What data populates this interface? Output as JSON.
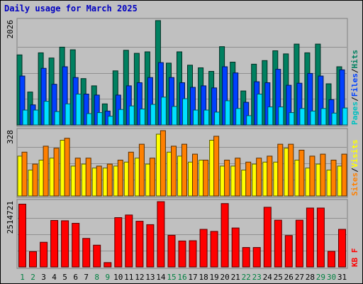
{
  "chart_data": {
    "type": "bar",
    "title": "Daily usage for March 2025",
    "categories": [
      "1",
      "2",
      "3",
      "4",
      "5",
      "6",
      "7",
      "8",
      "9",
      "10",
      "11",
      "12",
      "13",
      "14",
      "15",
      "16",
      "17",
      "18",
      "19",
      "20",
      "21",
      "22",
      "23",
      "24",
      "25",
      "26",
      "27",
      "28",
      "29",
      "30",
      "31"
    ],
    "weekend_days": [
      1,
      2,
      8,
      9,
      15,
      16,
      22,
      23,
      29,
      30
    ],
    "panels": [
      {
        "id": "hits",
        "ymax_label": "2026",
        "ymax": 2026,
        "legend": [
          {
            "text": "Pages",
            "color": "#00c0c0"
          },
          {
            "text": "/",
            "color": "#000000"
          },
          {
            "text": "Files",
            "color": "#0040ff"
          },
          {
            "text": "/",
            "color": "#000000"
          },
          {
            "text": "Hits",
            "color": "#008060"
          }
        ],
        "series": [
          {
            "name": "Hits",
            "color": "#008060",
            "values": [
              1360,
              640,
              1400,
              1300,
              1510,
              1460,
              900,
              760,
              410,
              1050,
              1450,
              1390,
              1420,
              2026,
              1200,
              1420,
              1160,
              1110,
              1040,
              1520,
              1220,
              660,
              1180,
              1250,
              1440,
              1380,
              1570,
              1400,
              1570,
              800,
              1130
            ]
          },
          {
            "name": "Files",
            "color": "#0040ff",
            "values": [
              950,
              390,
              1100,
              790,
              1130,
              920,
              600,
              580,
              270,
              580,
              760,
              820,
              920,
              1210,
              920,
              820,
              730,
              760,
              720,
              1130,
              1010,
              440,
              840,
              820,
              1080,
              770,
              810,
              1000,
              950,
              490,
              1070
            ]
          },
          {
            "name": "Pages",
            "color": "#00e0ff",
            "values": [
              290,
              290,
              460,
              260,
              410,
              600,
              220,
              240,
              170,
              300,
              370,
              310,
              400,
              540,
              360,
              510,
              290,
              290,
              250,
              470,
              320,
              180,
              600,
              350,
              350,
              240,
              320,
              270,
              320,
              230,
              330
            ]
          }
        ]
      },
      {
        "id": "visits",
        "ymax_label": "328",
        "ymax": 328,
        "legend": [
          {
            "text": "Sites",
            "color": "#ff8000"
          },
          {
            "text": "/",
            "color": "#000000"
          },
          {
            "text": "Visits",
            "color": "#ffff00"
          }
        ],
        "series": [
          {
            "name": "Visits",
            "color": "#ffff00",
            "values": [
              200,
              130,
              180,
              190,
              280,
              150,
              160,
              140,
              140,
              150,
              170,
              190,
              160,
              310,
              220,
              200,
              170,
              180,
              280,
              150,
              150,
              130,
              160,
              170,
              170,
              240,
              180,
              140,
              160,
              130,
              150
            ]
          },
          {
            "name": "Sites",
            "color": "#ff8000",
            "values": [
              220,
              160,
              250,
              240,
              290,
              190,
              190,
              150,
              160,
              180,
              220,
              260,
              190,
              328,
              250,
              260,
              210,
              180,
              300,
              180,
              190,
              170,
              190,
              200,
              260,
              260,
              230,
              200,
              210,
              180,
              210
            ]
          }
        ]
      },
      {
        "id": "kbytes",
        "ymax_label": "2514721",
        "ymax": 2514721,
        "legend": [
          {
            "text": "KB F",
            "color": "#ff0000"
          }
        ],
        "series": [
          {
            "name": "KB F",
            "color": "#ff0000",
            "values": [
              2420000,
              590000,
              950000,
              1790000,
              1780000,
              1680000,
              1100000,
              840000,
              170000,
              1900000,
              2000000,
              1760000,
              1630000,
              2514721,
              1220000,
              1000000,
              1010000,
              1450000,
              1370000,
              2440000,
              1500000,
              750000,
              750000,
              2300000,
              1800000,
              1210000,
              1800000,
              2270000,
              2270000,
              600000,
              1450000
            ]
          }
        ]
      }
    ]
  }
}
